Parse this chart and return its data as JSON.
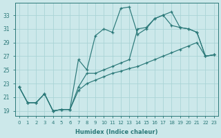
{
  "xlabel": "Humidex (Indice chaleur)",
  "bg_color": "#cce8ea",
  "grid_color": "#aad4d6",
  "line_color": "#2a7878",
  "xlim": [
    -0.5,
    23.5
  ],
  "ylim": [
    18.3,
    34.8
  ],
  "yticks": [
    19,
    21,
    23,
    25,
    27,
    29,
    31,
    33
  ],
  "xticks": [
    0,
    1,
    2,
    3,
    4,
    5,
    6,
    7,
    8,
    9,
    10,
    11,
    12,
    13,
    14,
    15,
    16,
    17,
    18,
    19,
    20,
    21,
    22,
    23
  ],
  "s1": [
    22.5,
    20.2,
    20.2,
    21.5,
    19.0,
    19.2,
    19.2,
    26.5,
    25.0,
    30.0,
    31.0,
    30.5,
    34.0,
    34.2,
    30.2,
    31.0,
    32.5,
    33.0,
    33.5,
    31.2,
    31.0,
    30.5,
    27.0,
    27.2
  ],
  "s2": [
    22.5,
    20.2,
    20.2,
    21.5,
    19.0,
    19.2,
    19.2,
    22.5,
    24.5,
    24.5,
    25.0,
    25.5,
    26.0,
    26.5,
    31.0,
    31.2,
    32.5,
    33.0,
    31.5,
    31.2,
    31.0,
    30.5,
    27.0,
    27.2
  ],
  "s3": [
    22.5,
    20.2,
    20.2,
    21.5,
    19.0,
    19.2,
    19.2,
    22.0,
    23.0,
    23.5,
    24.0,
    24.5,
    24.8,
    25.2,
    25.5,
    26.0,
    26.5,
    27.0,
    27.5,
    28.0,
    28.5,
    29.0,
    27.0,
    27.2
  ]
}
